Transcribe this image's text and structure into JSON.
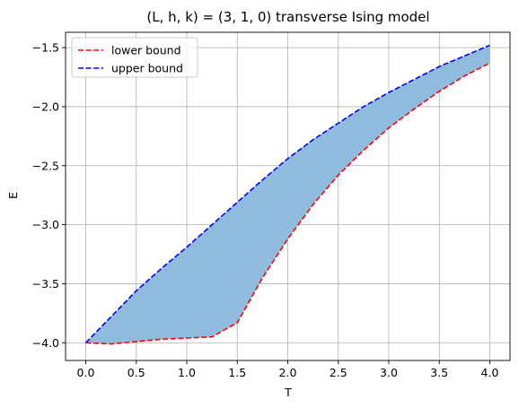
{
  "chart_data": {
    "type": "area",
    "title": "(L, h, k) = (3, 1, 0) transverse Ising model",
    "xlabel": "T",
    "ylabel": "E",
    "xlim": [
      -0.2,
      4.2
    ],
    "ylim": [
      -4.15,
      -1.37
    ],
    "xticks": [
      0.0,
      0.5,
      1.0,
      1.5,
      2.0,
      2.5,
      3.0,
      3.5,
      4.0
    ],
    "xtick_labels": [
      "0.0",
      "0.5",
      "1.0",
      "1.5",
      "2.0",
      "2.5",
      "3.0",
      "3.5",
      "4.0"
    ],
    "yticks": [
      -4.0,
      -3.5,
      -3.0,
      -2.5,
      -2.0,
      -1.5
    ],
    "ytick_labels": [
      "−4.0",
      "−3.5",
      "−3.0",
      "−2.5",
      "−2.0",
      "−1.5"
    ],
    "grid": true,
    "legend_position": "top-left",
    "fill_color": "#8fbcdc",
    "series": [
      {
        "name": "lower bound",
        "color": "#ff0000",
        "linestyle": "dashed",
        "x": [
          0.0,
          0.25,
          0.5,
          0.75,
          1.0,
          1.25,
          1.5,
          1.75,
          2.0,
          2.25,
          2.5,
          2.75,
          3.0,
          3.25,
          3.5,
          3.75,
          4.0
        ],
        "y": [
          -4.0,
          -4.01,
          -3.99,
          -3.97,
          -3.96,
          -3.95,
          -3.83,
          -3.45,
          -3.12,
          -2.83,
          -2.58,
          -2.37,
          -2.18,
          -2.02,
          -1.87,
          -1.74,
          -1.63
        ]
      },
      {
        "name": "upper bound",
        "color": "#0000ff",
        "linestyle": "dashed",
        "x": [
          0.0,
          0.25,
          0.5,
          0.75,
          1.0,
          1.25,
          1.5,
          1.75,
          2.0,
          2.25,
          2.5,
          2.75,
          3.0,
          3.25,
          3.5,
          3.75,
          4.0
        ],
        "y": [
          -4.0,
          -3.78,
          -3.56,
          -3.37,
          -3.19,
          -3.0,
          -2.81,
          -2.62,
          -2.44,
          -2.28,
          -2.14,
          -2.0,
          -1.88,
          -1.77,
          -1.66,
          -1.57,
          -1.48
        ]
      }
    ]
  }
}
